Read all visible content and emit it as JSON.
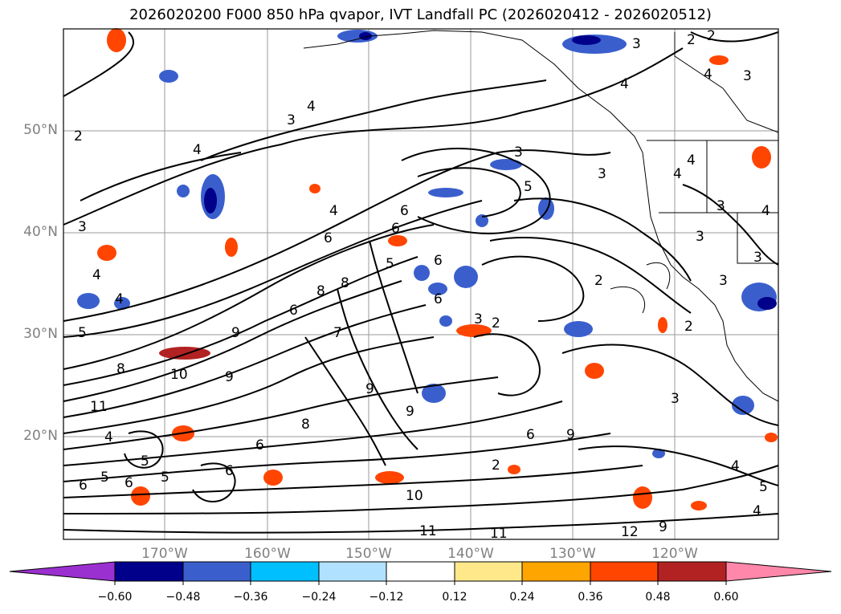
{
  "title": "2026020200 F000 850 hPa qvapor, IVT Landfall PC (2026020412 - 2026020512)",
  "map": {
    "lat_labels": [
      "50°N",
      "40°N",
      "30°N",
      "20°N"
    ],
    "lon_labels": [
      "170°W",
      "160°W",
      "150°W",
      "140°W",
      "130°W",
      "120°W"
    ],
    "gridlines": true,
    "contour_labels": [
      "2",
      "3",
      "4",
      "5",
      "6",
      "7",
      "8",
      "9",
      "10",
      "11",
      "12"
    ]
  },
  "colorbar": {
    "ticks": [
      "−0.60",
      "−0.48",
      "−0.36",
      "−0.24",
      "−0.12",
      "0.12",
      "0.24",
      "0.36",
      "0.48",
      "0.60"
    ],
    "colors": [
      "#9b30d0",
      "#00008b",
      "#3a5fcd",
      "#00bfff",
      "#b0e2ff",
      "#ffffff",
      "#ffe88a",
      "#ffa500",
      "#ff4500",
      "#b22222",
      "#ff88aa"
    ],
    "extend": "both"
  },
  "anomaly_colors": {
    "strong_negative": "#00008b",
    "negative": "#3a5fcd",
    "weak_negative": "#00bfff",
    "weak_positive": "#ffe88a",
    "positive": "#ffa500",
    "strong_positive": "#ff4500",
    "very_strong_positive": "#b22222"
  }
}
